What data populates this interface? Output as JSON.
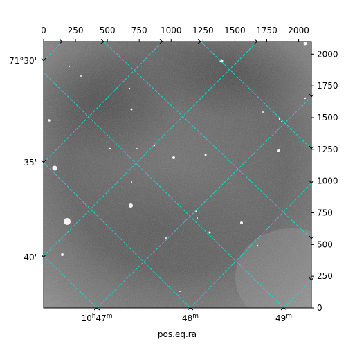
{
  "figure": {
    "xlabel": "pos.eq.ra",
    "grid_color": "#17d6d6",
    "background": "#ffffff"
  },
  "chart_data": {
    "type": "heatmap",
    "title": "",
    "xlabel": "pos.eq.ra",
    "ylabel": "",
    "pixel_axes": {
      "x_range": [
        0,
        2100
      ],
      "y_range": [
        0,
        2100
      ],
      "x_ticks": [
        "0",
        "250",
        "500",
        "750",
        "1000",
        "1250",
        "1500",
        "1750",
        "2000"
      ],
      "y_ticks": [
        "0",
        "250",
        "500",
        "750",
        "1000",
        "1250",
        "1500",
        "1750",
        "2000"
      ],
      "x_tick_values": [
        0,
        250,
        500,
        750,
        1000,
        1250,
        1500,
        1750,
        2000
      ],
      "y_tick_values": [
        0,
        250,
        500,
        750,
        1000,
        1250,
        1500,
        1750,
        2000
      ]
    },
    "ra_ticks": [
      {
        "label": "10",
        "sup": "h",
        "label2": "47",
        "sup2": "m"
      },
      {
        "label": "48",
        "sup": "m",
        "label2": "",
        "sup2": ""
      },
      {
        "label": "49",
        "sup": "m",
        "label2": "",
        "sup2": ""
      }
    ],
    "dec_ticks": [
      "71°30'",
      "35'",
      "40'"
    ],
    "grid": "on",
    "colormap": "gray"
  }
}
